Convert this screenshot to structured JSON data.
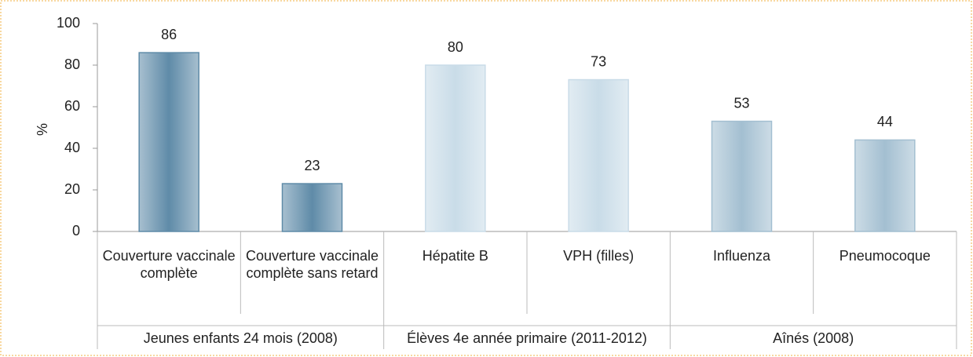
{
  "chart_data": {
    "type": "bar",
    "y_label": "%",
    "groups": [
      {
        "label": "Jeunes enfants 24 mois (2008)",
        "color": "#5f8ba8",
        "categories": [
          "Couverture vaccinale complète",
          "Couverture vaccinale complète sans retard"
        ],
        "values": [
          86,
          23
        ]
      },
      {
        "label": "Élèves 4e année primaire (2011-2012)",
        "color": "#c9dce8",
        "categories": [
          "Hépatite B",
          "VPH (filles)"
        ],
        "values": [
          80,
          73
        ]
      },
      {
        "label": "Aînés (2008)",
        "color": "#a3bfd1",
        "categories": [
          "Influenza",
          "Pneumocoque"
        ],
        "values": [
          53,
          44
        ]
      }
    ],
    "ylim": [
      0,
      100
    ],
    "yticks": [
      0,
      20,
      40,
      60,
      80,
      100
    ]
  }
}
